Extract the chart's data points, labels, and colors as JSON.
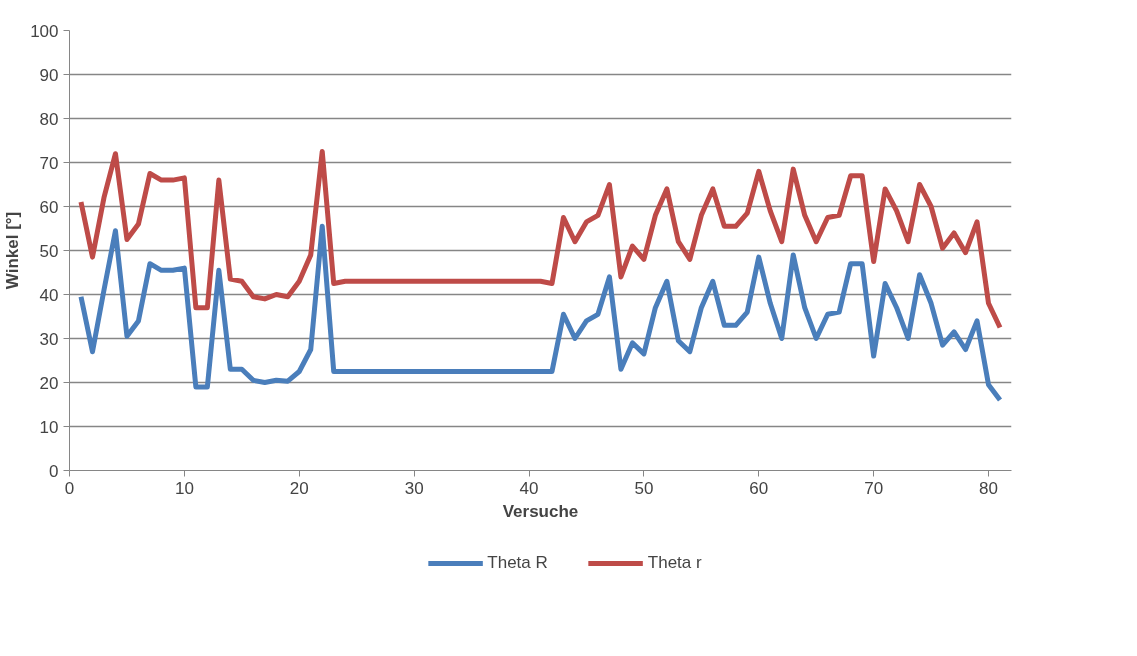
{
  "chart_data": {
    "type": "line",
    "xlabel": "Versuche",
    "ylabel": "Winkel [°]",
    "x": [
      1,
      2,
      3,
      4,
      5,
      6,
      7,
      8,
      9,
      10,
      11,
      12,
      13,
      14,
      15,
      16,
      17,
      18,
      19,
      20,
      21,
      22,
      23,
      24,
      25,
      26,
      27,
      28,
      29,
      30,
      31,
      32,
      33,
      34,
      35,
      36,
      37,
      38,
      39,
      40,
      41,
      42,
      43,
      44,
      45,
      46,
      47,
      48,
      49,
      50,
      51,
      52,
      53,
      54,
      55,
      56,
      57,
      58,
      59,
      60,
      61,
      62,
      63,
      64,
      65,
      66,
      67,
      68,
      69,
      70,
      71,
      72,
      73,
      74,
      75,
      76,
      77,
      78,
      79,
      80,
      81
    ],
    "series": [
      {
        "name": "Theta R",
        "color": "#4a7ebb",
        "values": [
          39.5,
          27,
          41,
          54.5,
          30.5,
          34,
          47,
          45.5,
          45.5,
          46,
          19,
          19,
          45.5,
          23,
          23,
          20.5,
          20,
          20.5,
          20.3,
          22.5,
          27.5,
          55.5,
          22.5,
          22.5,
          22.5,
          22.5,
          22.5,
          22.5,
          22.5,
          22.5,
          22.5,
          22.5,
          22.5,
          22.5,
          22.5,
          22.5,
          22.5,
          22.5,
          22.5,
          22.5,
          22.5,
          22.5,
          35.5,
          30,
          34,
          35.5,
          44,
          23,
          29,
          26.5,
          37,
          43,
          29.5,
          27,
          37,
          43,
          33,
          33,
          36,
          48.5,
          38,
          30,
          49,
          37,
          30,
          35.5,
          36,
          47,
          47,
          26,
          42.5,
          37,
          30,
          44.5,
          38,
          28.5,
          31.5,
          27.5,
          34,
          19.5,
          16
        ]
      },
      {
        "name": "Theta r",
        "color": "#be4b48",
        "values": [
          61,
          48.5,
          62,
          72,
          52.5,
          56,
          67.5,
          66,
          66,
          66.5,
          37,
          37,
          66,
          43.5,
          43,
          39.5,
          39,
          40,
          39.5,
          43,
          49,
          72.5,
          42.5,
          43,
          43,
          43,
          43,
          43,
          43,
          43,
          43,
          43,
          43,
          43,
          43,
          43,
          43,
          43,
          43,
          43,
          43,
          42.5,
          57.5,
          52,
          56.5,
          58,
          65,
          44,
          51,
          48,
          58,
          64,
          52,
          48,
          58,
          64,
          55.5,
          55.5,
          58.5,
          68,
          59,
          52,
          68.5,
          58,
          52,
          57.5,
          58,
          67,
          67,
          47.5,
          64,
          59,
          52,
          65,
          60,
          50.5,
          54,
          49.5,
          56.5,
          38,
          32.5
        ]
      }
    ],
    "xlim": [
      0,
      82
    ],
    "xticks": [
      0,
      10,
      20,
      30,
      40,
      50,
      60,
      70,
      80
    ],
    "ylim": [
      0,
      100
    ],
    "yticks": [
      0,
      10,
      20,
      30,
      40,
      50,
      60,
      70,
      80,
      90,
      100
    ],
    "grid": "y",
    "legend": "bottom",
    "marker": "none",
    "line_style": "solid"
  }
}
